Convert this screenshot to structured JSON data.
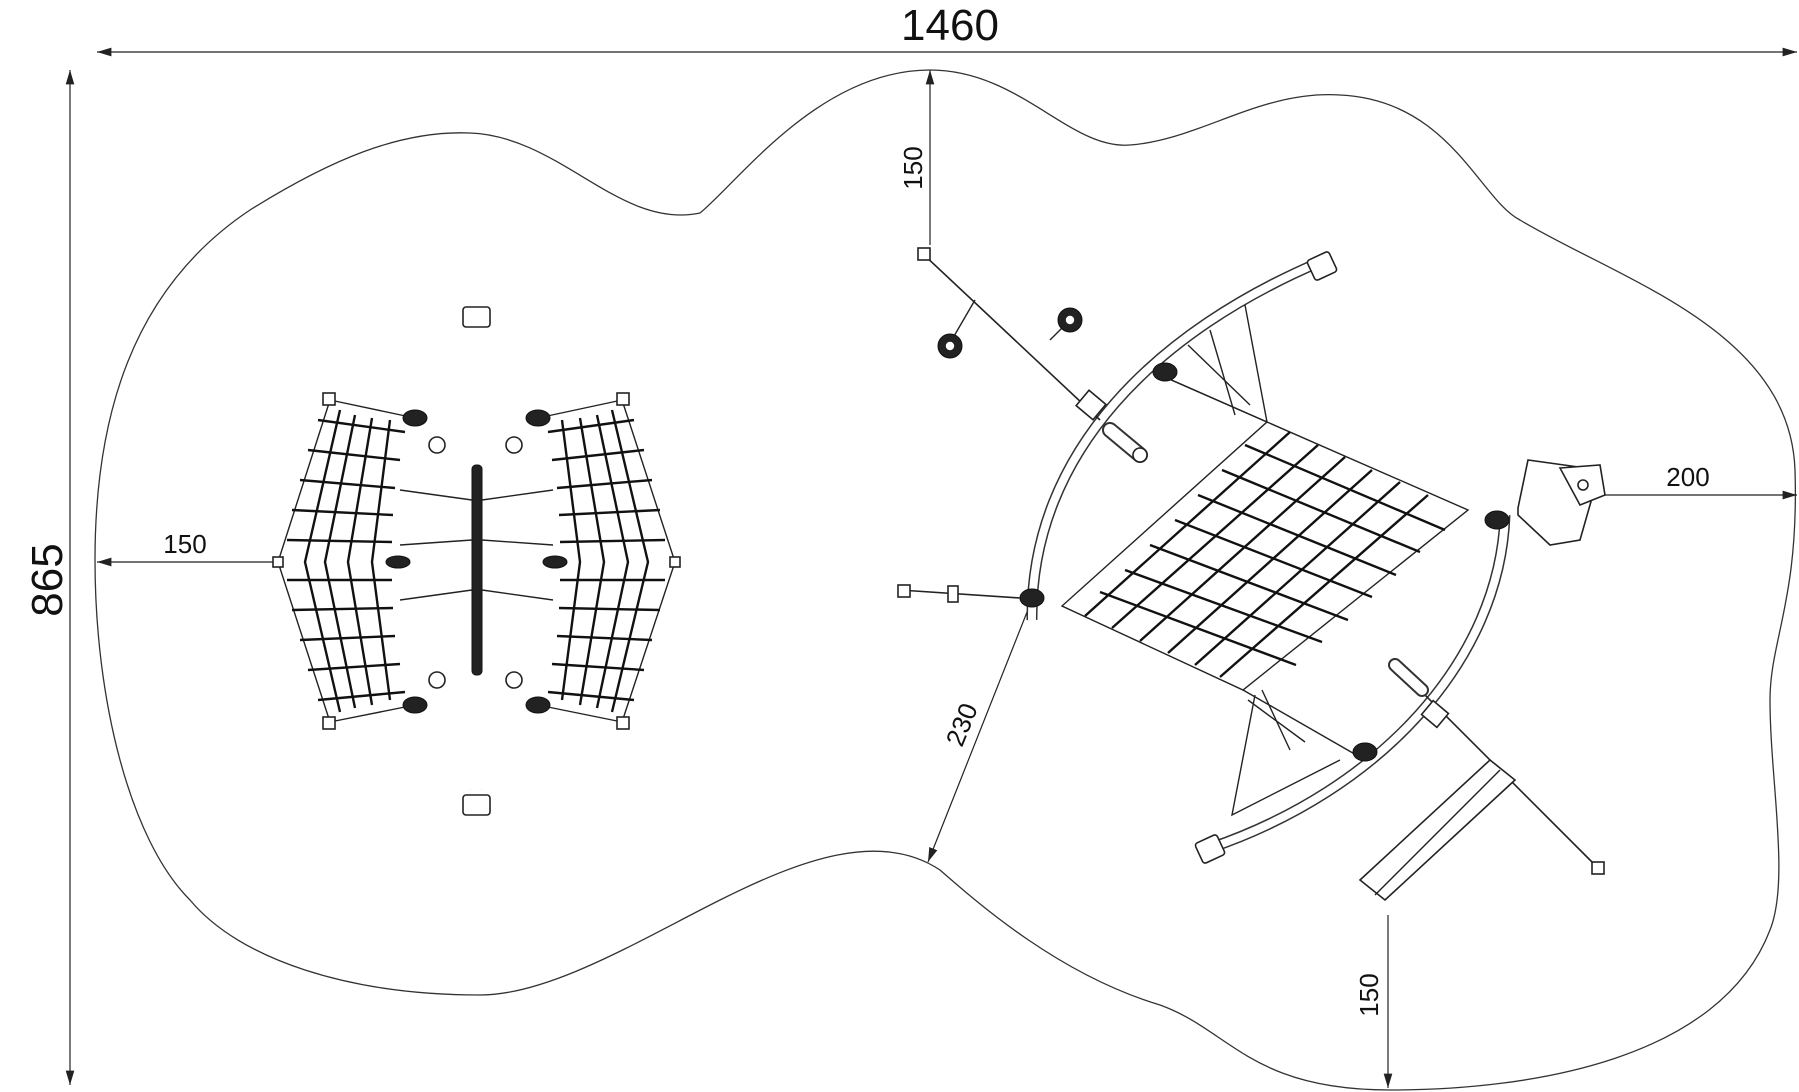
{
  "drawing": {
    "dimensions": {
      "overall_width": "1460",
      "overall_height": "865",
      "left_clearance": "150",
      "top_clearance": "150",
      "right_clearance": "200",
      "bottom_clearance": "150",
      "diagonal_clearance": "230"
    },
    "colors": {
      "line": "#222222",
      "background": "#ffffff"
    }
  }
}
